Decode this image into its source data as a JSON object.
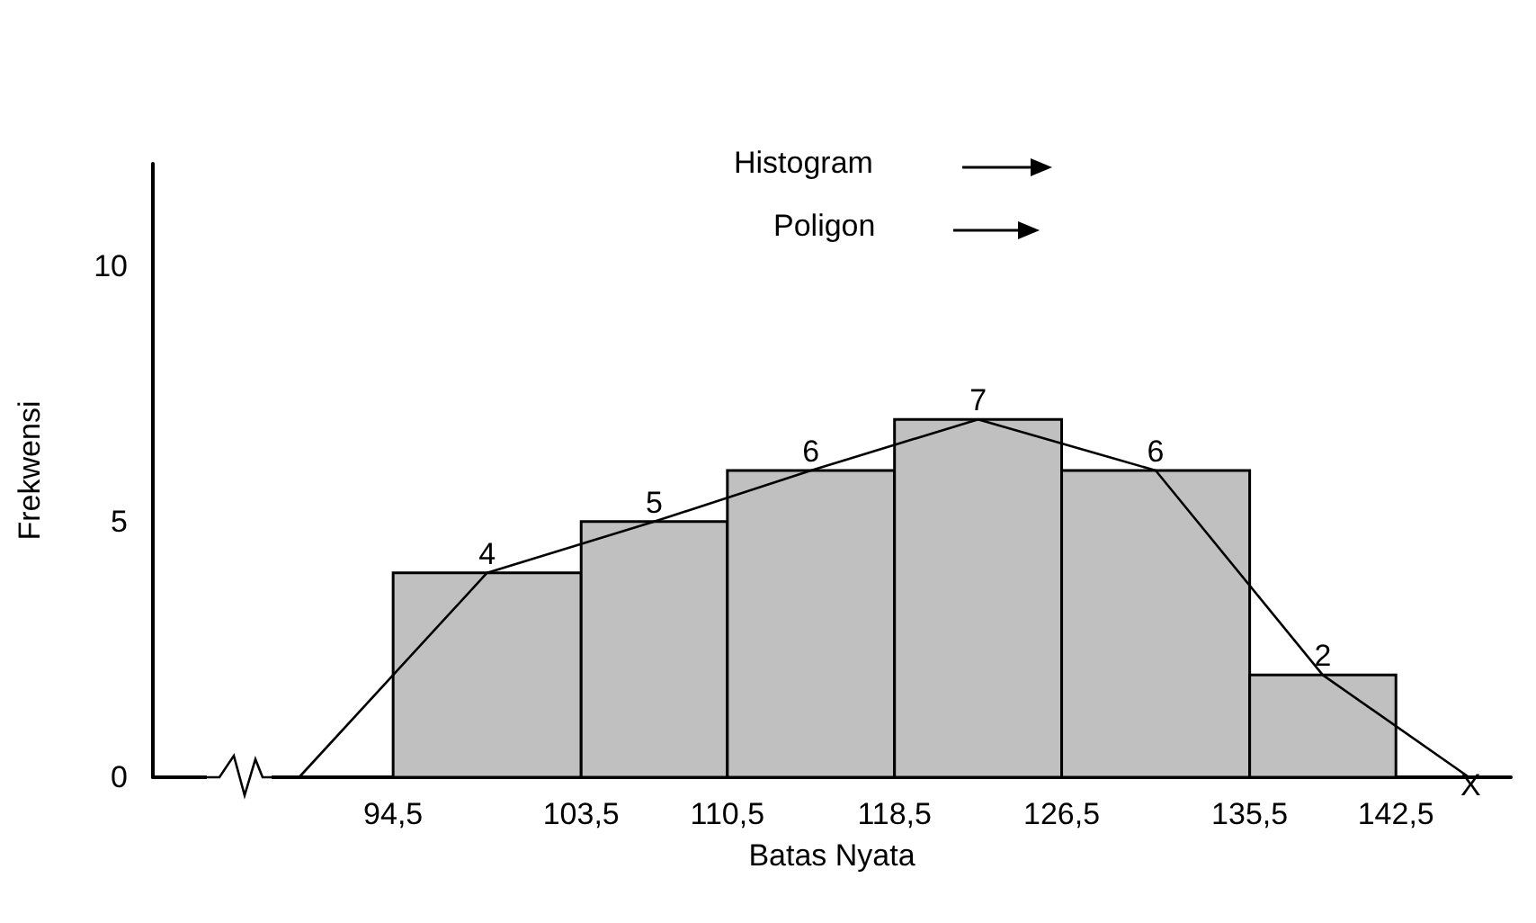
{
  "chart_data": {
    "type": "histogram",
    "xlabel": "Batas Nyata",
    "ylabel": "Frekwensi",
    "bins": [
      94.5,
      103.5,
      110.5,
      118.5,
      126.5,
      135.5,
      142.5
    ],
    "values": [
      4,
      5,
      6,
      7,
      6,
      2
    ],
    "color": "#c0c0c0",
    "series": [
      {
        "type": "line",
        "color": "#000000",
        "x": [
          90,
          99,
          107,
          114.5,
          122.5,
          131,
          139,
          146
        ],
        "values": [
          0,
          4,
          5,
          6,
          7,
          6,
          2,
          0
        ],
        "value_labels": [
          null,
          "4",
          "5",
          "6",
          "7",
          "6",
          "2",
          null
        ]
      }
    ],
    "xlim": [
      83,
      148
    ],
    "xticks": [
      {
        "value": 94.5,
        "label": "94,5"
      },
      {
        "value": 103.5,
        "label": "103,5"
      },
      {
        "value": 110.5,
        "label": "110,5"
      },
      {
        "value": 118.5,
        "label": "118,5"
      },
      {
        "value": 126.5,
        "label": "126,5"
      },
      {
        "value": 135.5,
        "label": "135,5"
      },
      {
        "value": 142.5,
        "label": "142,5"
      }
    ],
    "ylim": [
      0,
      12
    ],
    "yticks": [
      0,
      5,
      10
    ],
    "grid": false,
    "marker": "none",
    "annotations": [
      "Histogram",
      "Poligon",
      "X"
    ]
  }
}
